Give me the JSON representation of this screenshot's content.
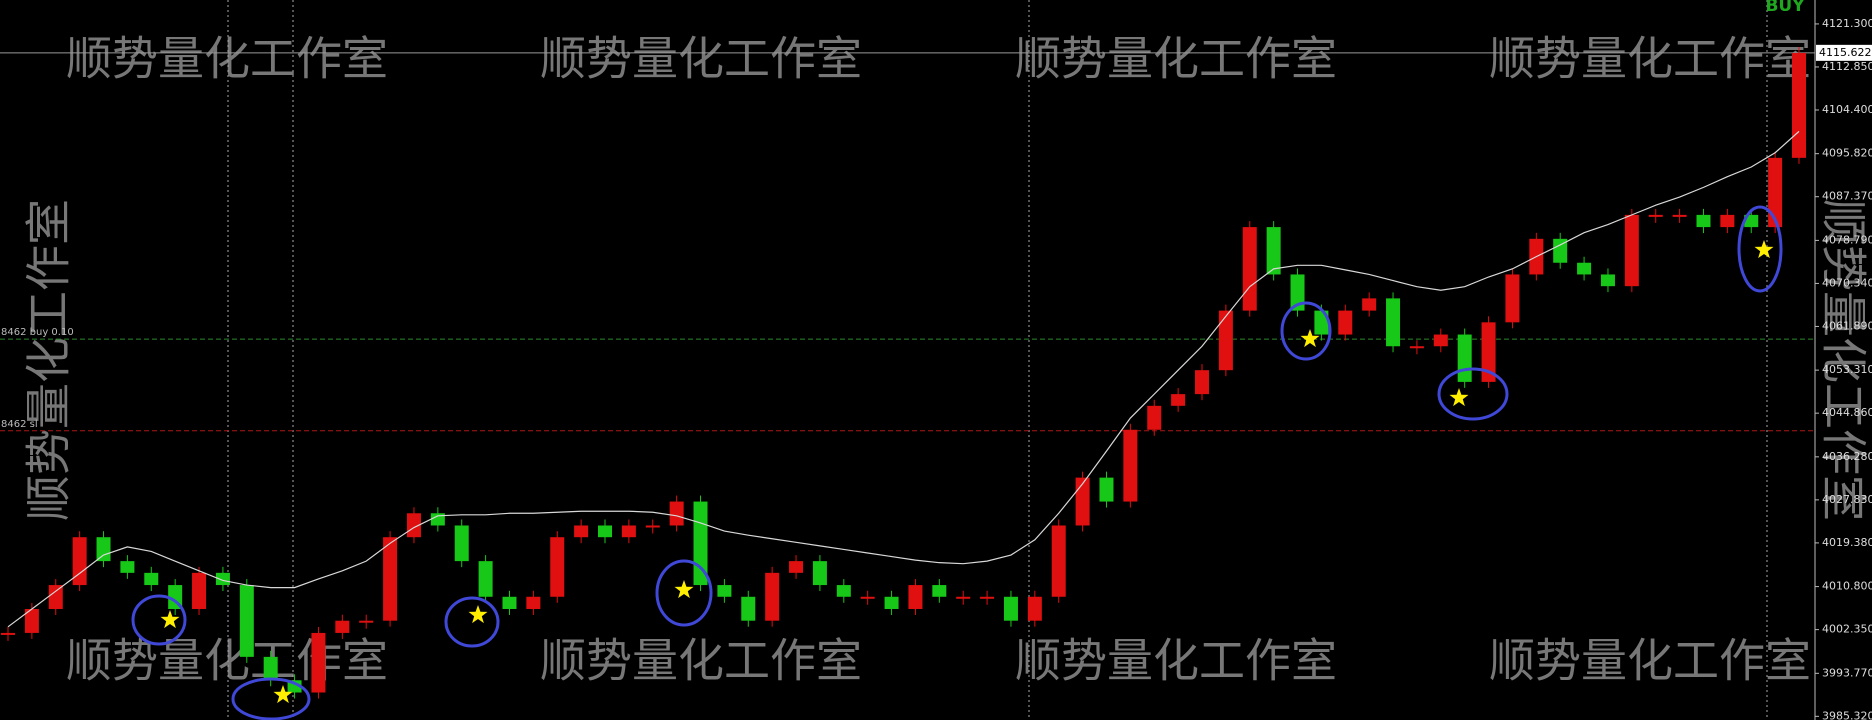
{
  "chart_data": {
    "type": "candlestick",
    "values": [
      4001.7,
      4006.4,
      4011.1,
      4020.5,
      4015.8,
      4013.5,
      4011.1,
      4006.4,
      4013.5,
      4011.1,
      3997.0,
      3992.4,
      3990.0,
      4001.7,
      4004.1,
      4004.1,
      4020.5,
      4025.2,
      4022.8,
      4015.8,
      4008.8,
      4006.4,
      4008.8,
      4020.5,
      4022.8,
      4020.5,
      4022.8,
      4022.8,
      4027.5,
      4011.1,
      4008.8,
      4004.1,
      4013.5,
      4015.8,
      4011.1,
      4008.8,
      4008.8,
      4006.4,
      4011.1,
      4008.8,
      4008.8,
      4008.8,
      4004.1,
      4008.8,
      4022.8,
      4032.2,
      4027.5,
      4041.6,
      4046.3,
      4048.6,
      4053.3,
      4065.0,
      4081.4,
      4072.1,
      4065.0,
      4060.3,
      4065.0,
      4067.4,
      4058.0,
      4058.0,
      4060.3,
      4051.0,
      4062.7,
      4072.1,
      4079.1,
      4074.4,
      4072.1,
      4069.8,
      4083.8,
      4083.8,
      4083.8,
      4081.4,
      4083.8,
      4081.4,
      4095.0,
      4115.6
    ],
    "up_color": "#e01010",
    "down_color": "#18c818",
    "ma": {
      "color": "#d8d8d8",
      "values": [
        4002.9,
        4006.4,
        4009.9,
        4013.4,
        4017.0,
        4018.6,
        4017.7,
        4015.8,
        4013.9,
        4012.0,
        4011.1,
        4010.6,
        4010.6,
        4012.3,
        4013.9,
        4015.8,
        4019.3,
        4022.4,
        4024.7,
        4024.9,
        4024.9,
        4025.2,
        4025.2,
        4025.4,
        4025.6,
        4025.6,
        4025.6,
        4025.4,
        4024.7,
        4023.3,
        4021.7,
        4020.9,
        4020.2,
        4019.5,
        4018.8,
        4018.1,
        4017.4,
        4016.7,
        4016.0,
        4015.5,
        4015.3,
        4015.8,
        4017.0,
        4020.0,
        4025.2,
        4031.0,
        4037.4,
        4043.9,
        4048.6,
        4053.3,
        4058.0,
        4063.9,
        4069.7,
        4073.2,
        4073.9,
        4073.9,
        4073.0,
        4072.1,
        4070.9,
        4069.7,
        4069.0,
        4069.7,
        4071.6,
        4073.2,
        4075.6,
        4077.9,
        4080.3,
        4081.9,
        4083.8,
        4085.7,
        4087.3,
        4089.2,
        4091.3,
        4093.2,
        4096.0,
        4100.2
      ]
    },
    "ylim": [
      3984.6,
      4126.0
    ],
    "yticks": [
      {
        "value": 4121.3,
        "label": "4121.300"
      },
      {
        "value": 4112.85,
        "label": "4112.850"
      },
      {
        "value": 4104.4,
        "label": "4104.400"
      },
      {
        "value": 4095.82,
        "label": "4095.820"
      },
      {
        "value": 4087.37,
        "label": "4087.370"
      },
      {
        "value": 4078.79,
        "label": "4078.790"
      },
      {
        "value": 4070.34,
        "label": "4070.340"
      },
      {
        "value": 4061.89,
        "label": "4061.890"
      },
      {
        "value": 4053.31,
        "label": "4053.310"
      },
      {
        "value": 4044.86,
        "label": "4044.860"
      },
      {
        "value": 4036.28,
        "label": "4036.280"
      },
      {
        "value": 4027.83,
        "label": "4027.830"
      },
      {
        "value": 4019.38,
        "label": "4019.380"
      },
      {
        "value": 4010.8,
        "label": "4010.800"
      },
      {
        "value": 4002.35,
        "label": "4002.350"
      },
      {
        "value": 3993.77,
        "label": "3993.770"
      },
      {
        "value": 3985.32,
        "label": "3985.320"
      }
    ],
    "levels": [
      {
        "label": "8462 buy 0.10",
        "value": 4059.4,
        "color": "#2a8a2a"
      },
      {
        "label": "8462 sl",
        "value": 4041.4,
        "color": "#b01414"
      }
    ],
    "current_price": 4115.622,
    "signal": "BUY",
    "watermark": "顺势量化工作室"
  }
}
